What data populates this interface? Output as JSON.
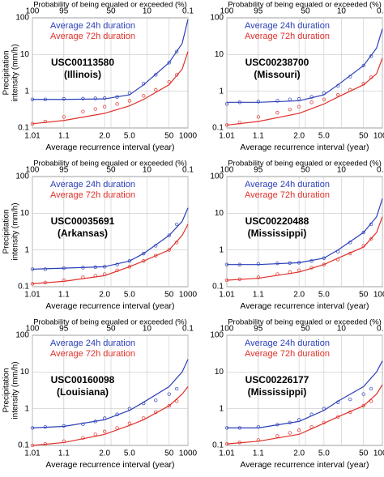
{
  "chart_data": [
    {
      "type": "scatter",
      "x2label": "Probability of being equaled or exceeded (%)",
      "xlabel": "Average recurrence interval (year)",
      "ylabel": [
        "Precipitation",
        "intensity (mm/h)"
      ],
      "annotations": [
        "USC00113580",
        "(Illinois)"
      ],
      "x2lim": [
        100,
        0.1
      ],
      "x2ticks": [
        100,
        95,
        50,
        10,
        0.1
      ],
      "xlim": [
        1.01,
        1000
      ],
      "xticks": [
        1.01,
        1.1,
        {
          "value": 2,
          "label": "2.0"
        },
        {
          "value": 5,
          "label": "5.0"
        },
        50,
        1000
      ],
      "ylim": [
        0.1,
        100
      ],
      "yticks": [
        0.1,
        1,
        10,
        100
      ],
      "ylog": true,
      "grid": true,
      "x": [
        1.01,
        1.03,
        1.1,
        1.3,
        1.6,
        2,
        3,
        5,
        10,
        20,
        50,
        100
      ],
      "fit_x": [
        1.01,
        1.1,
        2,
        5,
        10,
        50,
        200,
        1000
      ],
      "series": [
        {
          "name": "Average 24h duration",
          "color": "#2a3fb8",
          "values": [
            0.6,
            0.6,
            0.62,
            0.63,
            0.64,
            0.65,
            0.7,
            0.9,
            1.6,
            2.8,
            6,
            12
          ],
          "fit": [
            0.6,
            0.6,
            0.62,
            0.8,
            1.5,
            6,
            20,
            90
          ]
        },
        {
          "name": "Average 72h duration",
          "color": "#e0302a",
          "values": [
            0.13,
            0.15,
            0.2,
            0.28,
            0.33,
            0.38,
            0.45,
            0.55,
            0.75,
            1.1,
            1.8,
            2.8
          ],
          "fit": [
            0.13,
            0.16,
            0.25,
            0.4,
            0.6,
            1.5,
            4,
            12
          ]
        }
      ]
    },
    {
      "type": "scatter",
      "x2label": "Probability of being equaled or exceeded (%)",
      "xlabel": "Average recurrence interval (year)",
      "annotations": [
        "USC00238700",
        "(Missouri)"
      ],
      "x2lim": [
        100,
        0.1
      ],
      "x2ticks": [
        100,
        95,
        50,
        10,
        0.1
      ],
      "xlim": [
        1.01,
        1000
      ],
      "xticks": [
        1.01,
        1.1,
        {
          "value": 2,
          "label": "2.0"
        },
        {
          "value": 5,
          "label": "5.0"
        },
        50,
        1000
      ],
      "ylim": [
        0.1,
        100
      ],
      "yticks": [
        0.1,
        1,
        10,
        100
      ],
      "ylog": true,
      "grid": true,
      "x": [
        1.01,
        1.03,
        1.1,
        1.3,
        1.6,
        2,
        3,
        5,
        10,
        20,
        50,
        100
      ],
      "fit_x": [
        1.01,
        1.1,
        2,
        5,
        10,
        50,
        200,
        1000
      ],
      "series": [
        {
          "name": "Average 24h duration",
          "color": "#2a3fb8",
          "values": [
            0.45,
            0.5,
            0.52,
            0.55,
            0.6,
            0.62,
            0.7,
            0.9,
            1.4,
            2.5,
            5,
            9
          ],
          "fit": [
            0.5,
            0.5,
            0.55,
            0.8,
            1.5,
            5,
            15,
            50
          ]
        },
        {
          "name": "Average 72h duration",
          "color": "#e0302a",
          "values": [
            0.12,
            0.14,
            0.2,
            0.26,
            0.32,
            0.38,
            0.5,
            0.6,
            0.8,
            1.1,
            1.6,
            2.4
          ],
          "fit": [
            0.12,
            0.15,
            0.25,
            0.45,
            0.7,
            1.5,
            3,
            8
          ]
        }
      ]
    },
    {
      "type": "scatter",
      "x2label": "Probability of being equaled or exceeded (%)",
      "xlabel": "Average recurrence interval (year)",
      "ylabel": [
        "Precipitation",
        "intensity (mm/h)"
      ],
      "annotations": [
        "USC00035691",
        "(Arkansas)"
      ],
      "x2lim": [
        100,
        0.1
      ],
      "x2ticks": [
        100,
        95,
        50,
        10,
        0.1
      ],
      "xlim": [
        1.01,
        1000
      ],
      "xticks": [
        1.01,
        1.1,
        {
          "value": 2,
          "label": "2.0"
        },
        {
          "value": 5,
          "label": "5.0"
        },
        50,
        1000
      ],
      "ylim": [
        0.1,
        100
      ],
      "yticks": [
        0.1,
        1,
        10,
        100
      ],
      "ylog": true,
      "grid": true,
      "x": [
        1.01,
        1.03,
        1.1,
        1.3,
        1.6,
        2,
        3,
        5,
        10,
        20,
        50,
        100
      ],
      "fit_x": [
        1.01,
        1.1,
        2,
        5,
        10,
        50,
        200,
        1000
      ],
      "series": [
        {
          "name": "Average 24h duration",
          "color": "#2a3fb8",
          "values": [
            0.3,
            0.3,
            0.32,
            0.33,
            0.34,
            0.35,
            0.4,
            0.5,
            0.8,
            1.3,
            2.5,
            5
          ],
          "fit": [
            0.3,
            0.32,
            0.35,
            0.5,
            0.8,
            2.5,
            6,
            14
          ]
        },
        {
          "name": "Average 72h duration",
          "color": "#e0302a",
          "values": [
            0.12,
            0.13,
            0.15,
            0.18,
            0.2,
            0.22,
            0.28,
            0.35,
            0.5,
            0.7,
            1.0,
            1.6
          ],
          "fit": [
            0.12,
            0.14,
            0.2,
            0.35,
            0.5,
            1,
            2.5,
            5
          ]
        }
      ]
    },
    {
      "type": "scatter",
      "x2label": "Probability of being equaled or exceeded (%)",
      "xlabel": "Average recurrence interval (year)",
      "annotations": [
        "USC00220488",
        "(Mississippi)"
      ],
      "x2lim": [
        100,
        0.1
      ],
      "x2ticks": [
        100,
        95,
        50,
        10,
        0.1
      ],
      "xlim": [
        1.01,
        1000
      ],
      "xticks": [
        1.01,
        1.1,
        {
          "value": 2,
          "label": "2.0"
        },
        {
          "value": 5,
          "label": "5.0"
        },
        50,
        1000
      ],
      "ylim": [
        0.1,
        100
      ],
      "yticks": [
        0.1,
        1,
        10,
        100
      ],
      "ylog": true,
      "grid": true,
      "x": [
        1.01,
        1.03,
        1.1,
        1.3,
        1.6,
        2,
        3,
        5,
        10,
        20,
        50,
        100
      ],
      "fit_x": [
        1.01,
        1.1,
        2,
        5,
        10,
        50,
        200,
        1000
      ],
      "series": [
        {
          "name": "Average 24h duration",
          "color": "#2a3fb8",
          "values": [
            0.4,
            0.4,
            0.42,
            0.43,
            0.44,
            0.45,
            0.5,
            0.6,
            0.9,
            1.6,
            3,
            5
          ],
          "fit": [
            0.4,
            0.4,
            0.45,
            0.6,
            1,
            3,
            8,
            25
          ]
        },
        {
          "name": "Average 72h duration",
          "color": "#e0302a",
          "values": [
            0.15,
            0.16,
            0.18,
            0.22,
            0.25,
            0.28,
            0.33,
            0.4,
            0.55,
            0.8,
            1.3,
            2
          ],
          "fit": [
            0.15,
            0.17,
            0.25,
            0.4,
            0.6,
            1.2,
            3,
            8
          ]
        }
      ]
    },
    {
      "type": "scatter",
      "x2label": "Probability of being equaled or exceeded (%)",
      "xlabel": "Average recurrence interval (year)",
      "ylabel": [
        "Precipitation",
        "intensity (mm/h)"
      ],
      "annotations": [
        "USC00160098",
        "(Louisiana)"
      ],
      "x2lim": [
        100,
        0.1
      ],
      "x2ticks": [
        100,
        95,
        50,
        10,
        0.1
      ],
      "xlim": [
        1.01,
        1000
      ],
      "xticks": [
        1.01,
        1.1,
        {
          "value": 2,
          "label": "2.0"
        },
        {
          "value": 5,
          "label": "5.0"
        },
        50,
        1000
      ],
      "ylim": [
        0.1,
        100
      ],
      "yticks": [
        0.1,
        1,
        10,
        100
      ],
      "ylog": true,
      "grid": true,
      "x": [
        1.01,
        1.03,
        1.1,
        1.3,
        1.6,
        2,
        3,
        5,
        10,
        20,
        50,
        100
      ],
      "fit_x": [
        1.01,
        1.1,
        2,
        5,
        10,
        50,
        200,
        1000
      ],
      "series": [
        {
          "name": "Average 24h duration",
          "color": "#2a3fb8",
          "values": [
            0.3,
            0.32,
            0.34,
            0.38,
            0.45,
            0.55,
            0.7,
            1.0,
            1.4,
            1.7,
            2.5,
            3.5
          ],
          "fit": [
            0.3,
            0.33,
            0.5,
            0.9,
            1.5,
            4,
            10,
            22
          ]
        },
        {
          "name": "Average 72h duration",
          "color": "#e0302a",
          "values": [
            0.1,
            0.11,
            0.13,
            0.16,
            0.2,
            0.24,
            0.3,
            0.4,
            0.55,
            0.8,
            1.2,
            1.6
          ],
          "fit": [
            0.1,
            0.12,
            0.2,
            0.35,
            0.5,
            1.2,
            2.5,
            4
          ]
        }
      ]
    },
    {
      "type": "scatter",
      "x2label": "Probability of being equaled or exceeded (%)",
      "xlabel": "Average recurrence interval (year)",
      "annotations": [
        "USC00226177",
        "(Mississippi)"
      ],
      "x2lim": [
        100,
        0.1
      ],
      "x2ticks": [
        100,
        95,
        50,
        10,
        0.1
      ],
      "xlim": [
        1.01,
        1000
      ],
      "xticks": [
        1.01,
        1.1,
        {
          "value": 2,
          "label": "2.0"
        },
        {
          "value": 5,
          "label": "5.0"
        },
        50,
        1000
      ],
      "ylim": [
        0.1,
        100
      ],
      "yticks": [
        0.1,
        1,
        10,
        100
      ],
      "ylog": true,
      "grid": true,
      "x": [
        1.01,
        1.03,
        1.1,
        1.3,
        1.6,
        2,
        3,
        5,
        10,
        20,
        50,
        100
      ],
      "fit_x": [
        1.01,
        1.1,
        2,
        5,
        10,
        50,
        200,
        1000
      ],
      "series": [
        {
          "name": "Average 24h duration",
          "color": "#2a3fb8",
          "values": [
            0.3,
            0.3,
            0.32,
            0.37,
            0.42,
            0.5,
            0.7,
            1.0,
            1.5,
            1.8,
            2.5,
            3.5
          ],
          "fit": [
            0.3,
            0.3,
            0.45,
            0.9,
            1.6,
            4,
            10,
            20
          ]
        },
        {
          "name": "Average 72h duration",
          "color": "#e0302a",
          "values": [
            0.11,
            0.12,
            0.14,
            0.18,
            0.22,
            0.26,
            0.32,
            0.42,
            0.6,
            0.8,
            1.2,
            1.6
          ],
          "fit": [
            0.11,
            0.13,
            0.2,
            0.4,
            0.6,
            1.2,
            2.5,
            4.5
          ]
        }
      ]
    }
  ]
}
